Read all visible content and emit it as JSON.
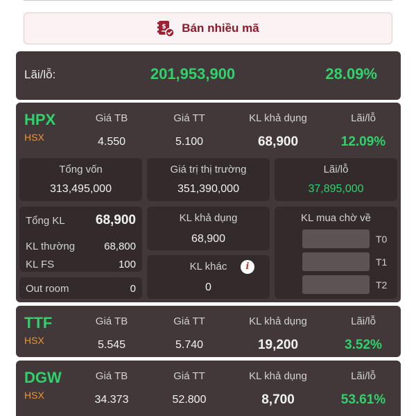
{
  "sell_button": {
    "label": "Bán nhiều mã",
    "icon": "document-dollar-check-icon"
  },
  "summary": {
    "label": "Lãi/lỗ:",
    "amount": "201,953,900",
    "percent": "28.09%"
  },
  "columns": {
    "avg_price": "Giá TB",
    "market_price": "Giá TT",
    "available_qty": "KL khả dụng",
    "pnl": "Lãi/lỗ"
  },
  "holdings": [
    {
      "symbol": "HPX",
      "exchange": "HSX",
      "avg_price": "4.550",
      "market_price": "5.100",
      "available_qty": "68,900",
      "pnl_percent": "12.09%",
      "details": {
        "total_capital_label": "Tổng vốn",
        "total_capital": "313,495,000",
        "market_value_label": "Giá trị thị trường",
        "market_value": "351,390,000",
        "pnl_label": "Lãi/lỗ",
        "pnl_amount": "37,895,000",
        "total_qty_label": "Tổng KL",
        "total_qty": "68,900",
        "normal_qty_label": "KL thường",
        "normal_qty": "68,800",
        "fs_qty_label": "KL FS",
        "fs_qty": "100",
        "out_room_label": "Out room",
        "out_room": "0",
        "available_label": "KL khả dụng",
        "available": "68,900",
        "other_label": "KL khác",
        "other": "0",
        "pending_label": "KL mua chờ về",
        "pending": [
          "T0",
          "T1",
          "T2"
        ]
      }
    },
    {
      "symbol": "TTF",
      "exchange": "HSX",
      "avg_price": "5.545",
      "market_price": "5.740",
      "available_qty": "19,200",
      "pnl_percent": "3.52%"
    },
    {
      "symbol": "DGW",
      "exchange": "HSX",
      "avg_price": "34.373",
      "market_price": "52.800",
      "available_qty": "8,700",
      "pnl_percent": "53.61%"
    }
  ],
  "colors": {
    "gain": "#2fd36b",
    "exchange": "#f0942f",
    "card_bg": "#423839",
    "brand": "#8b1a2b"
  }
}
